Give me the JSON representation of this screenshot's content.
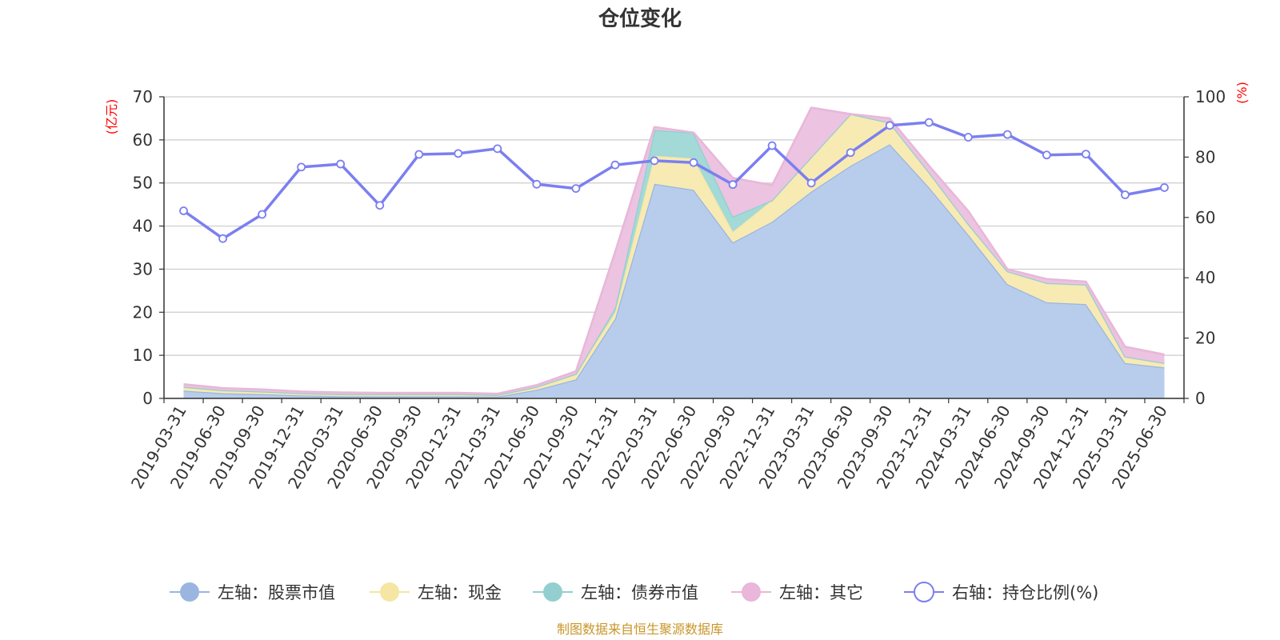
{
  "chart_data": {
    "type": "area",
    "title": "仓位变化",
    "y_left_unit": "(亿元)",
    "y_right_unit": "(%)",
    "y_left_lim": [
      0,
      70
    ],
    "y_left_ticks": [
      "0",
      "10",
      "20",
      "30",
      "40",
      "50",
      "60",
      "70"
    ],
    "y_right_lim": [
      0,
      100
    ],
    "y_right_ticks": [
      "0",
      "20",
      "40",
      "60",
      "80",
      "100"
    ],
    "grid": true,
    "legend_position": "bottom",
    "stacked": true,
    "categories": [
      "2019-03-31",
      "2019-06-30",
      "2019-09-30",
      "2019-12-31",
      "2020-03-31",
      "2020-06-30",
      "2020-09-30",
      "2020-12-31",
      "2021-03-31",
      "2021-06-30",
      "2021-09-30",
      "2021-12-31",
      "2022-03-31",
      "2022-06-30",
      "2022-09-30",
      "2022-12-31",
      "2023-03-31",
      "2023-06-30",
      "2023-09-30",
      "2023-12-31",
      "2024-03-31",
      "2024-06-30",
      "2024-09-30",
      "2024-12-31",
      "2025-03-31",
      "2025-06-30"
    ],
    "series": [
      {
        "name": "左轴：股票市值",
        "axis": "left",
        "kind": "area",
        "color": "#9ab6e0",
        "fill": "#b8cdeb",
        "values": [
          1.8,
          1.2,
          1.0,
          0.7,
          0.5,
          0.5,
          0.5,
          0.5,
          0.4,
          2.0,
          4.4,
          18.5,
          49.8,
          48.4,
          36.2,
          41.0,
          48.0,
          54.0,
          59.0,
          49.0,
          38.0,
          26.5,
          22.3,
          21.9,
          8.2,
          7.2
        ]
      },
      {
        "name": "左轴：现金",
        "axis": "left",
        "kind": "area",
        "color": "#f5e6a3",
        "fill": "#f8eab3",
        "values": [
          0.7,
          0.5,
          0.5,
          0.4,
          0.4,
          0.4,
          0.4,
          0.4,
          0.3,
          0.6,
          1.2,
          1.5,
          6.5,
          7.3,
          2.5,
          5.0,
          8.0,
          12.0,
          5.0,
          3.5,
          2.5,
          3.0,
          4.5,
          4.5,
          1.5,
          1.0
        ]
      },
      {
        "name": "左轴：债券市值",
        "axis": "left",
        "kind": "area",
        "color": "#93cfd0",
        "fill": "#a3d9d7",
        "values": [
          0.2,
          0.2,
          0.1,
          0.1,
          0.1,
          0.1,
          0.1,
          0.1,
          0.1,
          0.1,
          0.1,
          1.0,
          6.0,
          6.0,
          3.5,
          0,
          0,
          0,
          0,
          0,
          0,
          0,
          0,
          0,
          0,
          0
        ]
      },
      {
        "name": "左轴：其它",
        "axis": "left",
        "kind": "area",
        "color": "#e8b7d9",
        "fill": "#ecc3e0",
        "values": [
          0.6,
          0.5,
          0.5,
          0.4,
          0.4,
          0.3,
          0.3,
          0.3,
          0.3,
          0.4,
          0.6,
          13.0,
          0.7,
          0,
          9.0,
          3.5,
          11.5,
          0,
          1.0,
          1.5,
          3.0,
          0.5,
          0.9,
          0.7,
          2.3,
          2.0
        ]
      },
      {
        "name": "右轴：持仓比例(%)",
        "axis": "right",
        "kind": "line",
        "color": "#7b7ff0",
        "values": [
          62.2,
          53.0,
          61.0,
          76.7,
          77.7,
          64.0,
          80.9,
          81.2,
          82.8,
          71.0,
          69.6,
          77.4,
          78.8,
          78.2,
          70.9,
          83.8,
          71.4,
          81.5,
          90.5,
          91.5,
          86.6,
          87.5,
          80.7,
          81.0,
          67.5,
          69.9
        ]
      }
    ],
    "source_note": "制图数据来自恒生聚源数据库"
  }
}
